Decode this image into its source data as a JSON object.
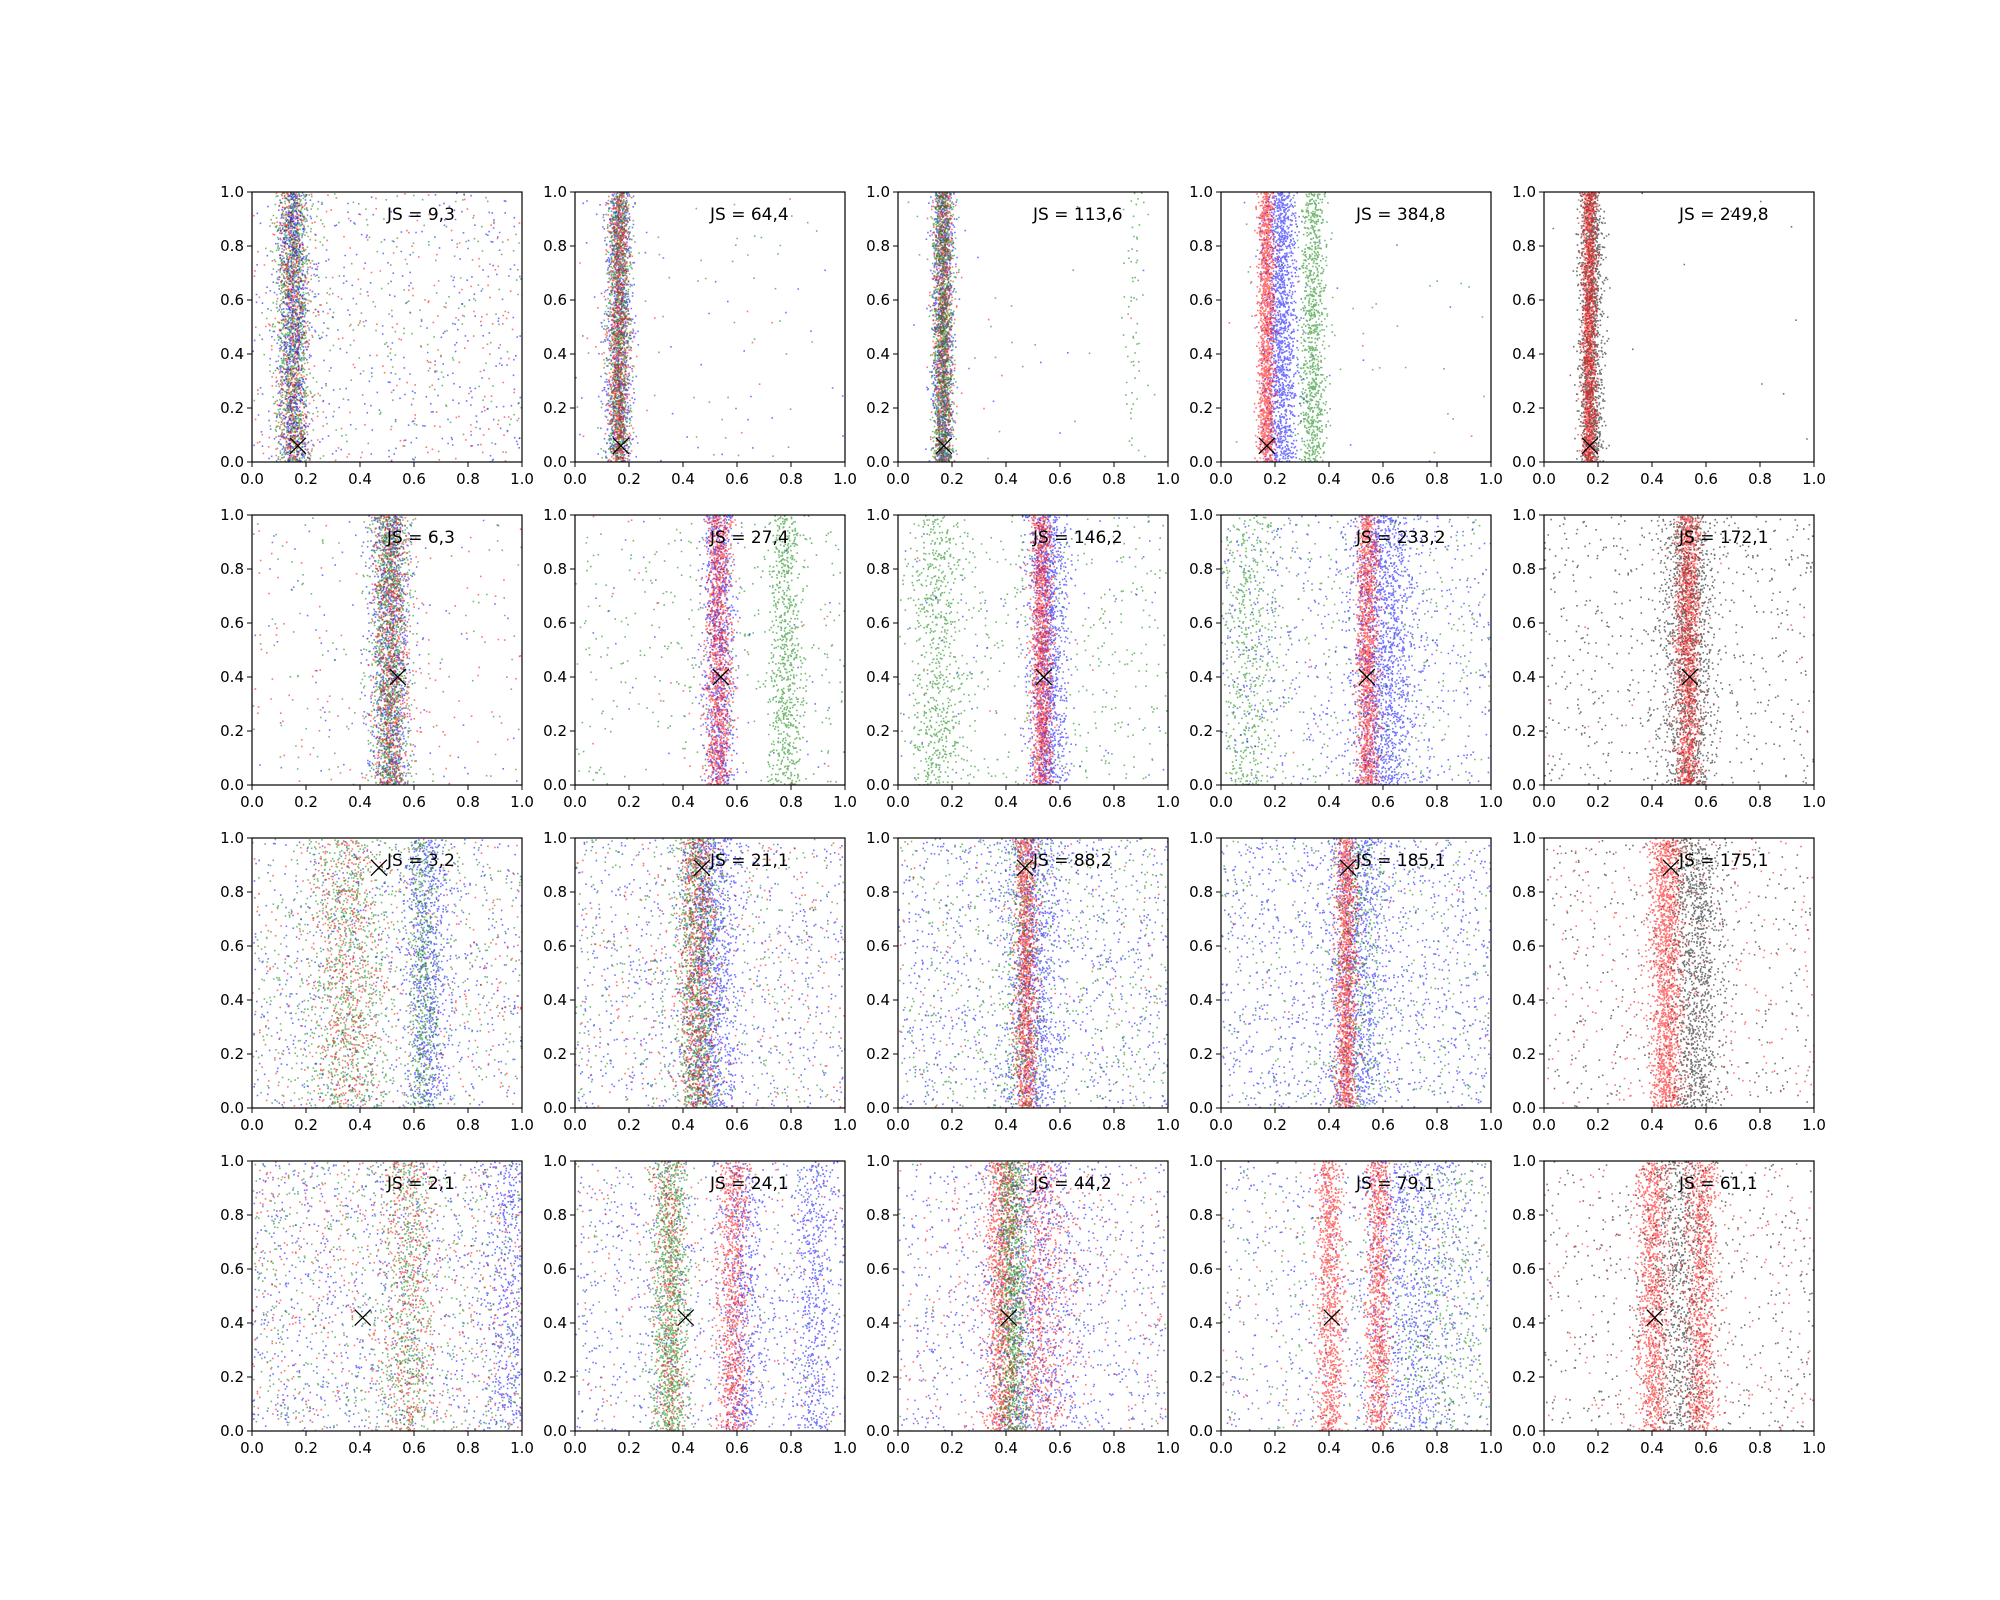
{
  "chart_data": {
    "type": "scatter",
    "layout": {
      "rows": 4,
      "cols": 5
    },
    "shared_axes": {
      "xlim": [
        0,
        1
      ],
      "ylim": [
        0,
        1
      ],
      "ticks": [
        "0.0",
        "0.2",
        "0.4",
        "0.6",
        "0.8",
        "1.0"
      ],
      "grid": false
    },
    "series_colors": [
      "#ff0000",
      "#0000ff",
      "#008000",
      "#000000"
    ],
    "marker": {
      "symbol": "x",
      "color": "#000000"
    },
    "panels": [
      {
        "row": 0,
        "col": 0,
        "js_label": "JS = 9,3",
        "marker": [
          0.17,
          0.06
        ],
        "clusters": [
          {
            "color": "#008000",
            "x": 0.15,
            "w": 0.03,
            "n": 1400,
            "bg": 250
          },
          {
            "color": "#ff0000",
            "x": 0.15,
            "w": 0.03,
            "n": 700,
            "bg": 250
          },
          {
            "color": "#0000ff",
            "x": 0.15,
            "w": 0.03,
            "n": 700,
            "bg": 350
          }
        ]
      },
      {
        "row": 0,
        "col": 1,
        "js_label": "JS = 64,4",
        "marker": [
          0.17,
          0.06
        ],
        "clusters": [
          {
            "color": "#0000ff",
            "x": 0.16,
            "w": 0.025,
            "n": 900,
            "bg": 40
          },
          {
            "color": "#008000",
            "x": 0.16,
            "w": 0.02,
            "n": 1200,
            "bg": 50
          },
          {
            "color": "#ff0000",
            "x": 0.16,
            "w": 0.02,
            "n": 900,
            "bg": 15
          }
        ]
      },
      {
        "row": 0,
        "col": 2,
        "js_label": "JS = 113,6",
        "marker": [
          0.17,
          0.06
        ],
        "clusters": [
          {
            "color": "#0000ff",
            "x": 0.165,
            "w": 0.02,
            "n": 900,
            "bg": 10
          },
          {
            "color": "#ff0000",
            "x": 0.165,
            "w": 0.018,
            "n": 900,
            "bg": 5
          },
          {
            "color": "#008000",
            "x": 0.165,
            "w": 0.018,
            "n": 1200,
            "bg": 25
          },
          {
            "color": "#008000",
            "x": 0.87,
            "w": 0.02,
            "n": 60,
            "bg": 0
          }
        ]
      },
      {
        "row": 0,
        "col": 3,
        "js_label": "JS = 384,8",
        "marker": [
          0.17,
          0.06
        ],
        "clusters": [
          {
            "color": "#0000ff",
            "x": 0.22,
            "w": 0.03,
            "n": 1500,
            "bg": 10
          },
          {
            "color": "#008000",
            "x": 0.34,
            "w": 0.025,
            "n": 900,
            "bg": 30
          },
          {
            "color": "#ff0000",
            "x": 0.165,
            "w": 0.015,
            "n": 1500,
            "bg": 5
          }
        ]
      },
      {
        "row": 0,
        "col": 4,
        "js_label": "JS = 249,8",
        "marker": [
          0.17,
          0.06
        ],
        "clusters": [
          {
            "color": "#000000",
            "x": 0.17,
            "w": 0.022,
            "n": 1500,
            "bg": 12
          },
          {
            "color": "#ff0000",
            "x": 0.165,
            "w": 0.014,
            "n": 1500,
            "bg": 0
          }
        ]
      },
      {
        "row": 1,
        "col": 0,
        "js_label": "JS = 6,3",
        "marker": [
          0.54,
          0.4
        ],
        "clusters": [
          {
            "color": "#0000ff",
            "x": 0.51,
            "w": 0.04,
            "n": 900,
            "bg": 80
          },
          {
            "color": "#008000",
            "x": 0.51,
            "w": 0.035,
            "n": 1300,
            "bg": 120
          },
          {
            "color": "#ff0000",
            "x": 0.51,
            "w": 0.035,
            "n": 800,
            "bg": 120
          }
        ]
      },
      {
        "row": 1,
        "col": 1,
        "js_label": "JS = 27,4",
        "marker": [
          0.54,
          0.4
        ],
        "clusters": [
          {
            "color": "#008000",
            "x": 0.78,
            "w": 0.03,
            "n": 700,
            "bg": 350
          },
          {
            "color": "#0000ff",
            "x": 0.53,
            "w": 0.03,
            "n": 900,
            "bg": 30
          },
          {
            "color": "#ff0000",
            "x": 0.53,
            "w": 0.025,
            "n": 1200,
            "bg": 20
          }
        ]
      },
      {
        "row": 1,
        "col": 2,
        "js_label": "JS = 146,2",
        "marker": [
          0.54,
          0.4
        ],
        "clusters": [
          {
            "color": "#008000",
            "x": 0.14,
            "w": 0.05,
            "n": 600,
            "bg": 500
          },
          {
            "color": "#0000ff",
            "x": 0.55,
            "w": 0.035,
            "n": 1300,
            "bg": 80
          },
          {
            "color": "#ff0000",
            "x": 0.53,
            "w": 0.02,
            "n": 1400,
            "bg": 10
          }
        ]
      },
      {
        "row": 1,
        "col": 3,
        "js_label": "JS = 233,2",
        "marker": [
          0.54,
          0.4
        ],
        "clusters": [
          {
            "color": "#008000",
            "x": 0.1,
            "w": 0.06,
            "n": 500,
            "bg": 400
          },
          {
            "color": "#0000ff",
            "x": 0.6,
            "w": 0.06,
            "n": 1500,
            "bg": 600
          },
          {
            "color": "#ff0000",
            "x": 0.54,
            "w": 0.02,
            "n": 1400,
            "bg": 10
          }
        ]
      },
      {
        "row": 1,
        "col": 4,
        "js_label": "JS = 172,1",
        "marker": [
          0.54,
          0.4
        ],
        "clusters": [
          {
            "color": "#000000",
            "x": 0.53,
            "w": 0.05,
            "n": 1400,
            "bg": 600
          },
          {
            "color": "#ff0000",
            "x": 0.53,
            "w": 0.022,
            "n": 1500,
            "bg": 20
          }
        ]
      },
      {
        "row": 2,
        "col": 0,
        "js_label": "JS = 3,2",
        "marker": [
          0.47,
          0.89
        ],
        "clusters": [
          {
            "color": "#008000",
            "x": 0.35,
            "w": 0.09,
            "n": 900,
            "bg": 500
          },
          {
            "color": "#0000ff",
            "x": 0.65,
            "w": 0.04,
            "n": 700,
            "bg": 600
          },
          {
            "color": "#ff0000",
            "x": 0.35,
            "w": 0.07,
            "n": 500,
            "bg": 300
          },
          {
            "color": "#008000",
            "x": 0.63,
            "w": 0.03,
            "n": 500,
            "bg": 0
          }
        ]
      },
      {
        "row": 2,
        "col": 1,
        "js_label": "JS = 21,1",
        "marker": [
          0.47,
          0.89
        ],
        "clusters": [
          {
            "color": "#0000ff",
            "x": 0.5,
            "w": 0.05,
            "n": 1100,
            "bg": 700
          },
          {
            "color": "#008000",
            "x": 0.45,
            "w": 0.04,
            "n": 1100,
            "bg": 400
          },
          {
            "color": "#ff0000",
            "x": 0.45,
            "w": 0.035,
            "n": 800,
            "bg": 300
          }
        ]
      },
      {
        "row": 2,
        "col": 2,
        "js_label": "JS = 88,2",
        "marker": [
          0.47,
          0.89
        ],
        "clusters": [
          {
            "color": "#0000ff",
            "x": 0.5,
            "w": 0.05,
            "n": 900,
            "bg": 900
          },
          {
            "color": "#008000",
            "x": 0.46,
            "w": 0.04,
            "n": 500,
            "bg": 600
          },
          {
            "color": "#ff0000",
            "x": 0.47,
            "w": 0.02,
            "n": 1200,
            "bg": 80
          }
        ]
      },
      {
        "row": 2,
        "col": 3,
        "js_label": "JS = 185,1",
        "marker": [
          0.47,
          0.89
        ],
        "clusters": [
          {
            "color": "#0000ff",
            "x": 0.5,
            "w": 0.06,
            "n": 900,
            "bg": 1100
          },
          {
            "color": "#008000",
            "x": 0.5,
            "w": 0.05,
            "n": 400,
            "bg": 400
          },
          {
            "color": "#ff0000",
            "x": 0.46,
            "w": 0.02,
            "n": 1400,
            "bg": 20
          }
        ]
      },
      {
        "row": 2,
        "col": 4,
        "js_label": "JS = 175,1",
        "marker": [
          0.47,
          0.89
        ],
        "clusters": [
          {
            "color": "#000000",
            "x": 0.56,
            "w": 0.05,
            "n": 1200,
            "bg": 400
          },
          {
            "color": "#ff0000",
            "x": 0.45,
            "w": 0.03,
            "n": 1600,
            "bg": 300
          }
        ]
      },
      {
        "row": 3,
        "col": 0,
        "js_label": "JS = 2,1",
        "marker": [
          0.41,
          0.42
        ],
        "clusters": [
          {
            "color": "#0000ff",
            "x": 0.95,
            "w": 0.04,
            "n": 400,
            "bg": 900
          },
          {
            "color": "#008000",
            "x": 0.57,
            "w": 0.05,
            "n": 500,
            "bg": 700
          },
          {
            "color": "#ff0000",
            "x": 0.57,
            "w": 0.05,
            "n": 400,
            "bg": 500
          }
        ]
      },
      {
        "row": 3,
        "col": 1,
        "js_label": "JS = 24,1",
        "marker": [
          0.41,
          0.42
        ],
        "clusters": [
          {
            "color": "#0000ff",
            "x": 0.88,
            "w": 0.04,
            "n": 500,
            "bg": 700
          },
          {
            "color": "#0000ff",
            "x": 0.62,
            "w": 0.04,
            "n": 500,
            "bg": 0
          },
          {
            "color": "#ff0000",
            "x": 0.58,
            "w": 0.03,
            "n": 900,
            "bg": 200
          },
          {
            "color": "#008000",
            "x": 0.35,
            "w": 0.035,
            "n": 1200,
            "bg": 150
          },
          {
            "color": "#ff0000",
            "x": 0.35,
            "w": 0.03,
            "n": 400,
            "bg": 0
          }
        ]
      },
      {
        "row": 3,
        "col": 2,
        "js_label": "JS = 44,2",
        "marker": [
          0.41,
          0.42
        ],
        "clusters": [
          {
            "color": "#0000ff",
            "x": 0.5,
            "w": 0.1,
            "n": 900,
            "bg": 700
          },
          {
            "color": "#ff0000",
            "x": 0.52,
            "w": 0.06,
            "n": 800,
            "bg": 300
          },
          {
            "color": "#ff0000",
            "x": 0.38,
            "w": 0.03,
            "n": 1100,
            "bg": 0
          },
          {
            "color": "#008000",
            "x": 0.42,
            "w": 0.03,
            "n": 1100,
            "bg": 100
          }
        ]
      },
      {
        "row": 3,
        "col": 3,
        "js_label": "JS = 79,1",
        "marker": [
          0.41,
          0.42
        ],
        "clusters": [
          {
            "color": "#0000ff",
            "x": 0.7,
            "w": 0.1,
            "n": 900,
            "bg": 500
          },
          {
            "color": "#008000",
            "x": 0.8,
            "w": 0.1,
            "n": 400,
            "bg": 300
          },
          {
            "color": "#ff0000",
            "x": 0.4,
            "w": 0.025,
            "n": 1000,
            "bg": 80
          },
          {
            "color": "#ff0000",
            "x": 0.58,
            "w": 0.025,
            "n": 1000,
            "bg": 0
          }
        ]
      },
      {
        "row": 3,
        "col": 4,
        "js_label": "JS = 61,1",
        "marker": [
          0.41,
          0.42
        ],
        "clusters": [
          {
            "color": "#000000",
            "x": 0.5,
            "w": 0.06,
            "n": 900,
            "bg": 500
          },
          {
            "color": "#ff0000",
            "x": 0.4,
            "w": 0.03,
            "n": 1100,
            "bg": 250
          },
          {
            "color": "#ff0000",
            "x": 0.58,
            "w": 0.03,
            "n": 1000,
            "bg": 0
          }
        ]
      }
    ]
  }
}
